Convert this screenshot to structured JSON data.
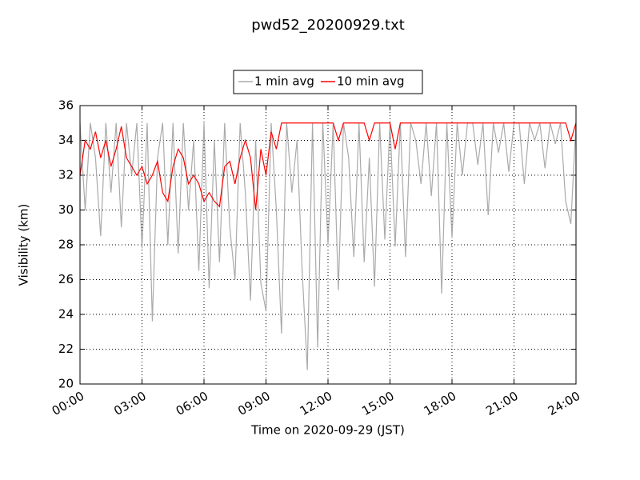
{
  "chart_data": {
    "type": "line",
    "title": "pwd52_20200929.txt",
    "x_label": "Time on 2020-09-29 (JST)",
    "y_label": "Visibility (km)",
    "x": [
      0,
      0.25,
      0.5,
      0.75,
      1,
      1.25,
      1.5,
      1.75,
      2,
      2.25,
      2.5,
      2.75,
      3,
      3.25,
      3.5,
      3.75,
      4,
      4.25,
      4.5,
      4.75,
      5,
      5.25,
      5.5,
      5.75,
      6,
      6.25,
      6.5,
      6.75,
      7,
      7.25,
      7.5,
      7.75,
      8,
      8.25,
      8.5,
      8.75,
      9,
      9.25,
      9.5,
      9.75,
      10,
      10.25,
      10.5,
      10.75,
      11,
      11.25,
      11.5,
      11.75,
      12,
      12.25,
      12.5,
      12.75,
      13,
      13.25,
      13.5,
      13.75,
      14,
      14.25,
      14.5,
      14.75,
      15,
      15.25,
      15.5,
      15.75,
      16,
      16.25,
      16.5,
      16.75,
      17,
      17.25,
      17.5,
      17.75,
      18,
      18.25,
      18.5,
      18.75,
      19,
      19.25,
      19.5,
      19.75,
      20,
      20.25,
      20.5,
      20.75,
      21,
      21.25,
      21.5,
      21.75,
      22,
      22.25,
      22.5,
      22.75,
      23,
      23.25,
      23.5,
      23.75,
      24
    ],
    "series": [
      {
        "name": "1 min avg",
        "color": "#aaaaaa",
        "values": [
          35,
          30,
          35,
          33,
          28.5,
          35,
          31,
          35,
          29,
          35,
          32,
          35,
          27.8,
          35,
          23.6,
          33,
          35,
          28,
          35,
          27.5,
          35,
          30,
          34,
          26.5,
          35,
          25.5,
          34,
          27,
          35,
          29,
          26,
          35,
          31,
          24.8,
          34,
          25.8,
          24.2,
          35,
          30,
          22.9,
          35,
          31,
          34,
          26.5,
          20.8,
          35,
          22.1,
          35,
          28,
          35,
          25.4,
          35,
          33,
          27.3,
          35,
          27,
          33,
          25.6,
          35,
          28.3,
          35,
          27.9,
          35,
          27.3,
          35,
          34,
          31.5,
          35,
          30.8,
          35,
          25.2,
          35,
          28.4,
          35,
          32,
          35,
          35,
          32.6,
          35,
          29.7,
          35,
          33.3,
          35,
          32.2,
          35,
          35,
          31.5,
          35,
          34,
          35,
          32.4,
          35,
          33.8,
          35,
          30.5,
          29.2,
          35
        ]
      },
      {
        "name": "10 min avg",
        "color": "#ff0000",
        "values": [
          32,
          34,
          33.5,
          34.5,
          33,
          34,
          32.5,
          33.5,
          34.8,
          33,
          32.5,
          32,
          32.5,
          31.5,
          32,
          32.8,
          31,
          30.5,
          32.5,
          33.5,
          33,
          31.5,
          32,
          31.5,
          30.5,
          31,
          30.5,
          30.2,
          32.5,
          32.8,
          31.5,
          33,
          34,
          33,
          30,
          33.5,
          32,
          34.5,
          33.5,
          35,
          35,
          35,
          35,
          35,
          35,
          35,
          35,
          35,
          35,
          35,
          34,
          35,
          35,
          35,
          35,
          35,
          34,
          35,
          35,
          35,
          35,
          33.5,
          35,
          35,
          35,
          35,
          35,
          35,
          35,
          35,
          35,
          35,
          35,
          35,
          35,
          35,
          35,
          35,
          35,
          35,
          35,
          35,
          35,
          35,
          35,
          35,
          35,
          35,
          35,
          35,
          35,
          35,
          35,
          35,
          35,
          34,
          35
        ]
      }
    ],
    "xlim": [
      0,
      24
    ],
    "xticks": [
      {
        "value": 0,
        "label": "00:00"
      },
      {
        "value": 3,
        "label": "03:00"
      },
      {
        "value": 6,
        "label": "06:00"
      },
      {
        "value": 9,
        "label": "09:00"
      },
      {
        "value": 12,
        "label": "12:00"
      },
      {
        "value": 15,
        "label": "15:00"
      },
      {
        "value": 18,
        "label": "18:00"
      },
      {
        "value": 21,
        "label": "21:00"
      },
      {
        "value": 24,
        "label": "24:00"
      }
    ],
    "ylim": [
      20,
      36
    ],
    "yticks": [
      20,
      22,
      24,
      26,
      28,
      30,
      32,
      34,
      36
    ],
    "grid": true,
    "legend": "top"
  }
}
